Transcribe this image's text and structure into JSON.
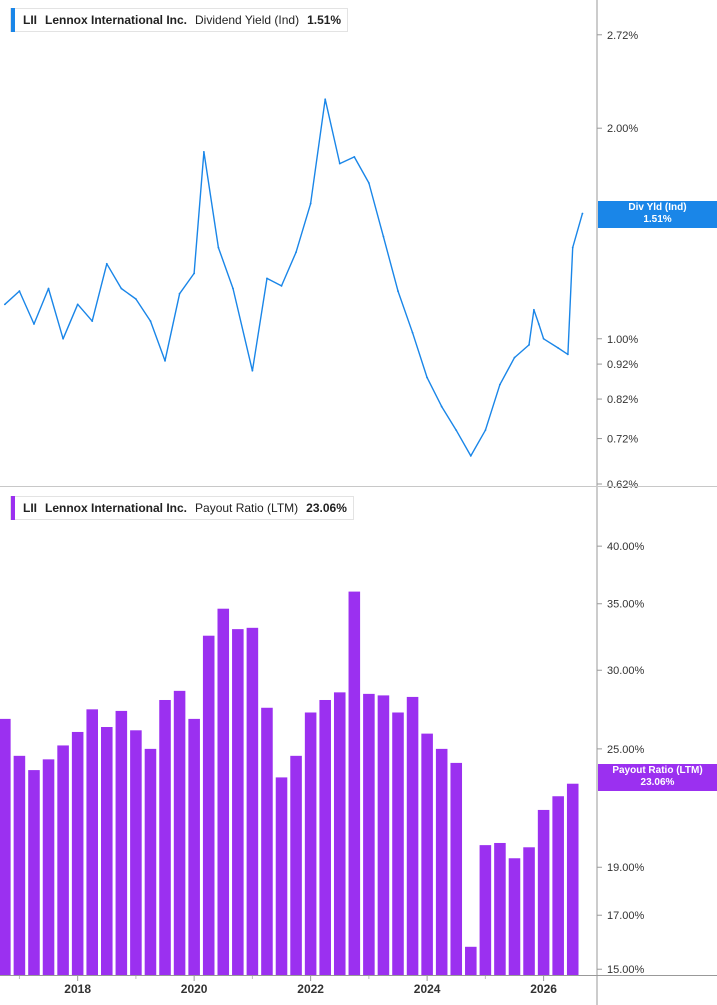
{
  "chart_data": [
    {
      "type": "line",
      "ticker": "LII",
      "company": "Lennox International Inc.",
      "metric": "Dividend Yield (Ind)",
      "current_value": "1.51%",
      "flag_label": "Div Yld (Ind)",
      "flag_value": "1.51%",
      "color": "#1a86e8",
      "y_scale": "log",
      "y_ticks": [
        "2.72%",
        "2.00%",
        "1.00%",
        "0.92%",
        "0.82%",
        "0.72%",
        "0.62%"
      ],
      "y_tick_values": [
        2.72,
        2.0,
        1.0,
        0.92,
        0.82,
        0.72,
        0.62
      ],
      "ylim": [
        0.62,
        3.05
      ],
      "x": [
        "2016-10",
        "2017-01",
        "2017-04",
        "2017-07",
        "2017-10",
        "2018-01",
        "2018-04",
        "2018-07",
        "2018-10",
        "2019-01",
        "2019-04",
        "2019-07",
        "2019-10",
        "2020-01",
        "2020-03",
        "2020-06",
        "2020-09",
        "2021-01",
        "2021-04",
        "2021-07",
        "2021-10",
        "2022-01",
        "2022-04",
        "2022-07",
        "2022-10",
        "2023-01",
        "2023-04",
        "2023-07",
        "2023-10",
        "2024-01",
        "2024-04",
        "2024-07",
        "2024-10",
        "2025-01",
        "2025-04",
        "2025-07",
        "2025-10",
        "2025-11",
        "2025-12",
        "2026-01",
        "2026-04",
        "2026-06",
        "2026-07",
        "2026-09"
      ],
      "values": [
        1.12,
        1.17,
        1.05,
        1.18,
        1.0,
        1.12,
        1.06,
        1.28,
        1.18,
        1.14,
        1.06,
        0.93,
        1.16,
        1.24,
        1.85,
        1.35,
        1.18,
        0.9,
        1.22,
        1.19,
        1.33,
        1.56,
        2.2,
        1.78,
        1.82,
        1.67,
        1.4,
        1.17,
        1.02,
        0.88,
        0.8,
        0.74,
        0.68,
        0.74,
        0.86,
        0.94,
        0.98,
        1.1,
        1.05,
        1.0,
        0.97,
        0.95,
        1.35,
        1.51
      ]
    },
    {
      "type": "bar",
      "ticker": "LII",
      "company": "Lennox International Inc.",
      "metric": "Payout Ratio (LTM)",
      "current_value": "23.06%",
      "flag_label": "Payout Ratio (LTM)",
      "flag_value": "23.06%",
      "color": "#9b30f0",
      "y_scale": "log",
      "y_ticks": [
        "40.00%",
        "35.00%",
        "30.00%",
        "25.00%",
        "19.00%",
        "17.00%",
        "15.00%"
      ],
      "y_tick_values": [
        40,
        35,
        30,
        25,
        19,
        17,
        15
      ],
      "ylim": [
        14.8,
        42.5
      ],
      "x": [
        "2016-Q4",
        "2017-Q1",
        "2017-Q2",
        "2017-Q3",
        "2017-Q4",
        "2018-Q1",
        "2018-Q2",
        "2018-Q3",
        "2018-Q4",
        "2019-Q1",
        "2019-Q2",
        "2019-Q3",
        "2019-Q4",
        "2020-Q1",
        "2020-Q2",
        "2020-Q3",
        "2020-Q4",
        "2021-Q1",
        "2021-Q2",
        "2021-Q3",
        "2021-Q4",
        "2022-Q1",
        "2022-Q2",
        "2022-Q3",
        "2022-Q4",
        "2023-Q1",
        "2023-Q2",
        "2023-Q3",
        "2023-Q4",
        "2024-Q1",
        "2024-Q2",
        "2024-Q3",
        "2024-Q4",
        "2025-Q1",
        "2025-Q2",
        "2025-Q3",
        "2025-Q4",
        "2026-Q1",
        "2026-Q2",
        "2026-Q3"
      ],
      "values": [
        26.8,
        24.6,
        23.8,
        24.4,
        25.2,
        26.0,
        27.4,
        26.3,
        27.3,
        26.1,
        25.0,
        28.0,
        28.6,
        26.8,
        32.5,
        34.6,
        33.0,
        33.1,
        27.5,
        23.4,
        24.6,
        27.2,
        28.0,
        28.5,
        36.0,
        28.4,
        28.3,
        27.2,
        28.2,
        25.9,
        25.0,
        24.2,
        15.8,
        20.0,
        20.1,
        19.4,
        19.9,
        21.7,
        22.4,
        23.06
      ]
    }
  ],
  "x_axis": {
    "labels": [
      "2018",
      "2020",
      "2022",
      "2024",
      "2026"
    ],
    "domain": [
      "2016-09",
      "2026-12"
    ]
  }
}
